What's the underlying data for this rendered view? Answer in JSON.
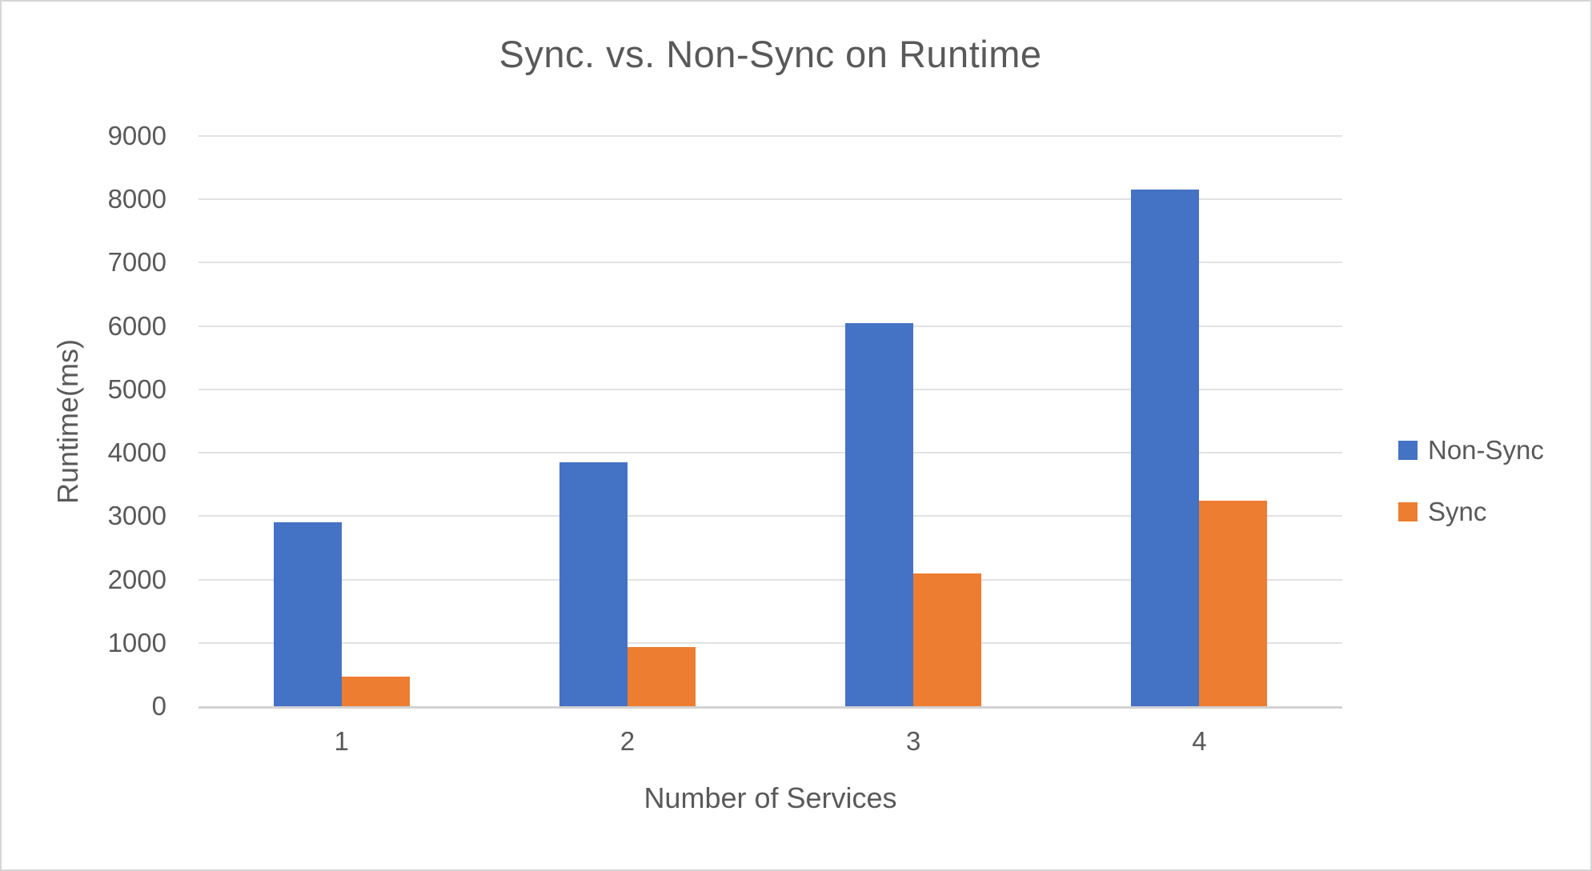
{
  "chart_data": {
    "type": "bar",
    "title": "Sync. vs. Non-Sync on Runtime",
    "xlabel": "Number of Services",
    "ylabel": "Runtime(ms)",
    "categories": [
      "1",
      "2",
      "3",
      "4"
    ],
    "series": [
      {
        "name": "Non-Sync",
        "color": "#4472C4",
        "values": [
          2900,
          3850,
          6050,
          8150
        ]
      },
      {
        "name": "Sync",
        "color": "#ED7D31",
        "values": [
          470,
          930,
          2100,
          3250
        ]
      }
    ],
    "ylim": [
      0,
      9000
    ],
    "ytick_interval": 1000,
    "grid": true,
    "legend_position": "right"
  },
  "colors": {
    "background": "#FFFFFF",
    "text": "#595959",
    "gridline": "#E2E2E2",
    "axis_line": "#D2D2D2",
    "border": "#D6D6D6"
  }
}
